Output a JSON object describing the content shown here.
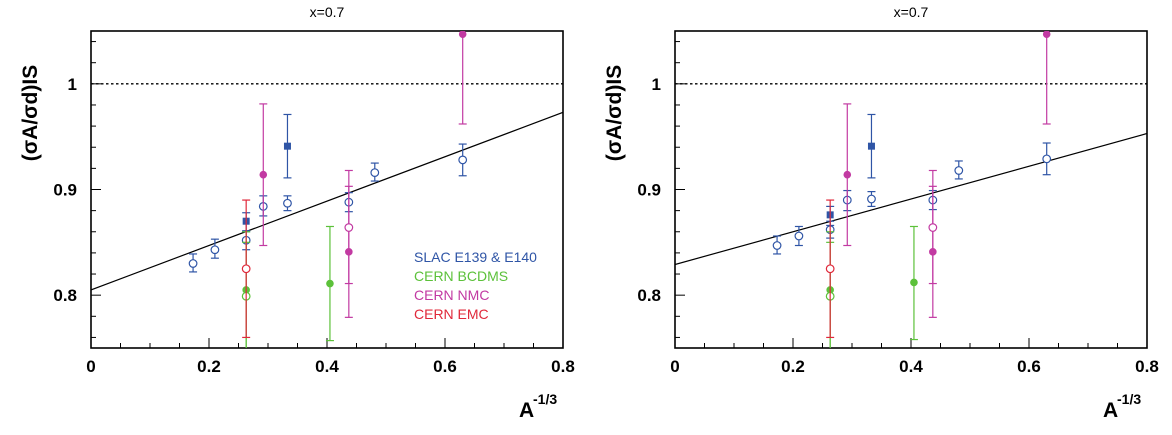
{
  "colors": {
    "slac": "#2f55a6",
    "bcdms": "#5cc13a",
    "nmc": "#c23aa2",
    "emc": "#e0283a",
    "axis": "#000000"
  },
  "chart_data": [
    {
      "type": "scatter",
      "title": "x=0.7",
      "xlabel": "A",
      "xlabel_sup": "-1/3",
      "ylabel": "(σA/σd)IS",
      "xlim": [
        0,
        0.8
      ],
      "ylim": [
        0.75,
        1.05
      ],
      "xticks": [
        0,
        0.2,
        0.4,
        0.6,
        0.8
      ],
      "xtick_labels": [
        "0",
        "0.2",
        "0.4",
        "0.6",
        "0.8"
      ],
      "yticks": [
        0.8,
        0.9,
        1.0
      ],
      "ytick_labels": [
        "0.8",
        "0.9",
        "1"
      ],
      "reference_line": {
        "y": 1.0,
        "style": "dotted"
      },
      "fit_line": {
        "x": [
          0,
          0.8
        ],
        "y": [
          0.805,
          0.973
        ]
      },
      "legend": {
        "placement": "bottom-right",
        "entries": [
          {
            "label": "SLAC E139 & E140",
            "color": "#2f55a6"
          },
          {
            "label": "CERN BCDMS",
            "color": "#5cc13a"
          },
          {
            "label": "CERN NMC",
            "color": "#c23aa2"
          },
          {
            "label": "CERN EMC",
            "color": "#e0283a"
          }
        ]
      },
      "series": [
        {
          "name": "SLAC E139 & E140",
          "marker": "open-circle",
          "color": "#2f55a6",
          "points": [
            {
              "x": 0.173,
              "y": 0.83,
              "lo": 0.822,
              "hi": 0.839
            },
            {
              "x": 0.21,
              "y": 0.843,
              "lo": 0.835,
              "hi": 0.853
            },
            {
              "x": 0.263,
              "y": 0.852,
              "lo": 0.843,
              "hi": 0.861
            },
            {
              "x": 0.292,
              "y": 0.884,
              "lo": 0.875,
              "hi": 0.894
            },
            {
              "x": 0.333,
              "y": 0.887,
              "lo": 0.88,
              "hi": 0.894
            },
            {
              "x": 0.437,
              "y": 0.888,
              "lo": 0.879,
              "hi": 0.897
            },
            {
              "x": 0.481,
              "y": 0.916,
              "lo": 0.908,
              "hi": 0.925
            },
            {
              "x": 0.63,
              "y": 0.928,
              "lo": 0.913,
              "hi": 0.943
            }
          ]
        },
        {
          "name": "SLAC E139 & E140",
          "marker": "filled-square",
          "color": "#2f55a6",
          "points": [
            {
              "x": 0.263,
              "y": 0.87,
              "lo": 0.86,
              "hi": 0.878
            },
            {
              "x": 0.333,
              "y": 0.941,
              "lo": 0.911,
              "hi": 0.971
            }
          ]
        },
        {
          "name": "CERN BCDMS",
          "marker": "filled-circle",
          "color": "#5cc13a",
          "points": [
            {
              "x": 0.263,
              "y": 0.805,
              "lo": 0.75,
              "hi": 0.86
            },
            {
              "x": 0.405,
              "y": 0.811,
              "lo": 0.757,
              "hi": 0.865
            }
          ]
        },
        {
          "name": "CERN BCDMS",
          "marker": "open-circle",
          "color": "#5cc13a",
          "points": [
            {
              "x": 0.263,
              "y": 0.799,
              "lo": 0.75,
              "hi": 0.85
            }
          ]
        },
        {
          "name": "CERN NMC",
          "marker": "filled-circle",
          "color": "#c23aa2",
          "points": [
            {
              "x": 0.292,
              "y": 0.914,
              "lo": 0.847,
              "hi": 0.981
            },
            {
              "x": 0.437,
              "y": 0.841,
              "lo": 0.779,
              "hi": 0.903
            },
            {
              "x": 0.63,
              "y": 1.047,
              "lo": 0.962,
              "hi": 1.05
            }
          ]
        },
        {
          "name": "CERN NMC",
          "marker": "open-circle",
          "color": "#c23aa2",
          "points": [
            {
              "x": 0.437,
              "y": 0.864,
              "lo": 0.811,
              "hi": 0.918
            }
          ]
        },
        {
          "name": "CERN EMC",
          "marker": "open-circle",
          "color": "#e0283a",
          "points": [
            {
              "x": 0.263,
              "y": 0.825,
              "lo": 0.76,
              "hi": 0.89
            }
          ]
        }
      ]
    },
    {
      "type": "scatter",
      "title": "x=0.7",
      "xlabel": "A",
      "xlabel_sup": "-1/3",
      "ylabel": "(σA/σd)IS",
      "xlim": [
        0,
        0.8
      ],
      "ylim": [
        0.75,
        1.05
      ],
      "xticks": [
        0,
        0.2,
        0.4,
        0.6,
        0.8
      ],
      "xtick_labels": [
        "0",
        "0.2",
        "0.4",
        "0.6",
        "0.8"
      ],
      "yticks": [
        0.8,
        0.9,
        1.0
      ],
      "ytick_labels": [
        "0.8",
        "0.9",
        "1"
      ],
      "reference_line": {
        "y": 1.0,
        "style": "dotted"
      },
      "fit_line": {
        "x": [
          0,
          0.8
        ],
        "y": [
          0.829,
          0.953
        ]
      },
      "legend": null,
      "series": [
        {
          "name": "SLAC E139 & E140",
          "marker": "open-circle",
          "color": "#2f55a6",
          "points": [
            {
              "x": 0.173,
              "y": 0.847,
              "lo": 0.839,
              "hi": 0.856
            },
            {
              "x": 0.21,
              "y": 0.856,
              "lo": 0.847,
              "hi": 0.865
            },
            {
              "x": 0.263,
              "y": 0.862,
              "lo": 0.854,
              "hi": 0.87
            },
            {
              "x": 0.292,
              "y": 0.89,
              "lo": 0.88,
              "hi": 0.899
            },
            {
              "x": 0.333,
              "y": 0.891,
              "lo": 0.884,
              "hi": 0.898
            },
            {
              "x": 0.437,
              "y": 0.89,
              "lo": 0.881,
              "hi": 0.899
            },
            {
              "x": 0.481,
              "y": 0.918,
              "lo": 0.91,
              "hi": 0.927
            },
            {
              "x": 0.63,
              "y": 0.929,
              "lo": 0.914,
              "hi": 0.944
            }
          ]
        },
        {
          "name": "SLAC E139 & E140",
          "marker": "filled-square",
          "color": "#2f55a6",
          "points": [
            {
              "x": 0.263,
              "y": 0.876,
              "lo": 0.866,
              "hi": 0.884
            },
            {
              "x": 0.333,
              "y": 0.941,
              "lo": 0.911,
              "hi": 0.971
            }
          ]
        },
        {
          "name": "CERN BCDMS",
          "marker": "filled-circle",
          "color": "#5cc13a",
          "points": [
            {
              "x": 0.263,
              "y": 0.805,
              "lo": 0.75,
              "hi": 0.86
            },
            {
              "x": 0.405,
              "y": 0.812,
              "lo": 0.758,
              "hi": 0.865
            }
          ]
        },
        {
          "name": "CERN BCDMS",
          "marker": "open-circle",
          "color": "#5cc13a",
          "points": [
            {
              "x": 0.263,
              "y": 0.799,
              "lo": 0.75,
              "hi": 0.85
            }
          ]
        },
        {
          "name": "CERN NMC",
          "marker": "filled-circle",
          "color": "#c23aa2",
          "points": [
            {
              "x": 0.292,
              "y": 0.914,
              "lo": 0.847,
              "hi": 0.981
            },
            {
              "x": 0.437,
              "y": 0.841,
              "lo": 0.779,
              "hi": 0.903
            },
            {
              "x": 0.63,
              "y": 1.047,
              "lo": 0.962,
              "hi": 1.05
            }
          ]
        },
        {
          "name": "CERN NMC",
          "marker": "open-circle",
          "color": "#c23aa2",
          "points": [
            {
              "x": 0.437,
              "y": 0.864,
              "lo": 0.811,
              "hi": 0.918
            }
          ]
        },
        {
          "name": "CERN EMC",
          "marker": "open-circle",
          "color": "#e0283a",
          "points": [
            {
              "x": 0.263,
              "y": 0.825,
              "lo": 0.76,
              "hi": 0.89
            }
          ]
        }
      ]
    }
  ]
}
